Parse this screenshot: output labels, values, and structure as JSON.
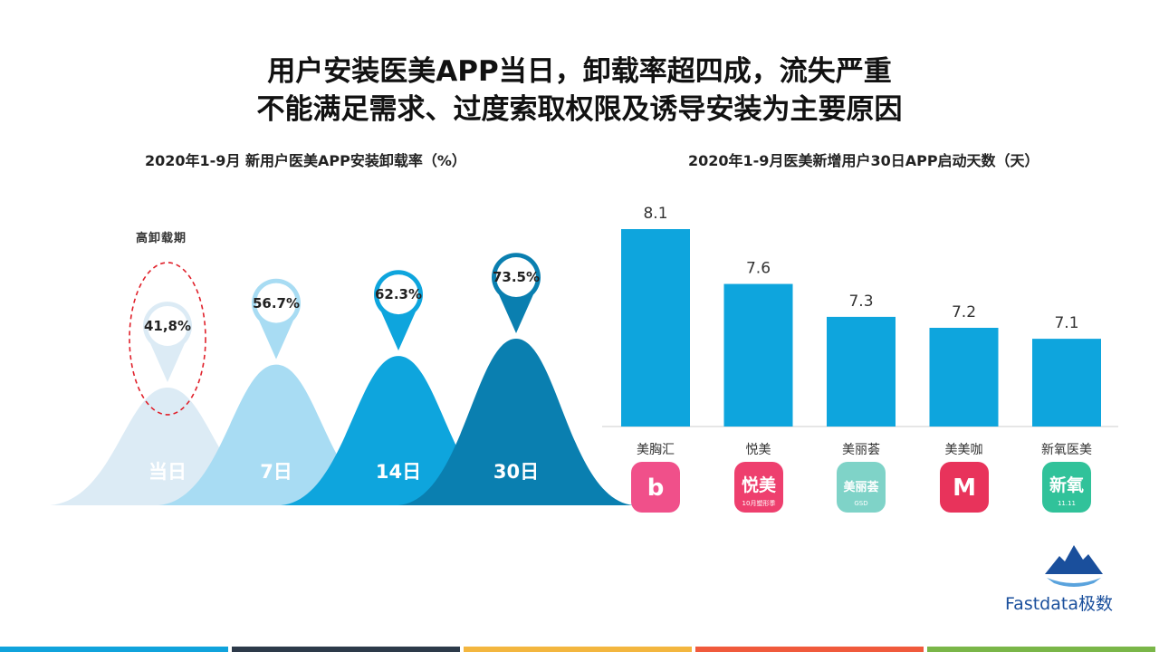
{
  "title": {
    "line1": "用户安装医美APP当日，卸载率超四成，流失严重",
    "line2": "不能满足需求、过度索取权限及诱导安装为主要原因"
  },
  "chart_data": [
    {
      "type": "area",
      "title": "2020年1-9月 新用户医美APP安装卸载率（%）",
      "annotation": "高卸载期",
      "categories": [
        "当日",
        "7日",
        "14日",
        "30日"
      ],
      "value_labels": [
        "41,8%",
        "56.7%",
        "62.3%",
        "73.5%"
      ],
      "values": [
        41.8,
        56.7,
        62.3,
        73.5
      ],
      "colors": [
        "#dcebf5",
        "#a8dcf3",
        "#0ea5dd",
        "#0a7fb0"
      ]
    },
    {
      "type": "bar",
      "title": "2020年1-9月医美新增用户30日APP启动天数（天）",
      "categories": [
        "美胸汇",
        "悦美",
        "美丽荟",
        "美美咖",
        "新氧医美"
      ],
      "values": [
        8.1,
        7.6,
        7.3,
        7.2,
        7.1
      ],
      "value_labels": [
        "8.1",
        "7.6",
        "7.3",
        "7.2",
        "7.1"
      ],
      "bar_color": "#0ea5dd"
    }
  ],
  "apps": [
    {
      "name": "美胸汇",
      "icon": "meixionghui-app-icon",
      "color": "#f0508a",
      "icon_text": "b"
    },
    {
      "name": "悦美",
      "icon": "yuemei-app-icon",
      "color": "#ee3f6e",
      "icon_text": "悦美",
      "icon_sub": "10月塑形季"
    },
    {
      "name": "美丽荟",
      "icon": "meilihui-app-icon",
      "color": "#7fd3c8",
      "icon_text": "美丽荟",
      "icon_sub": "GSD"
    },
    {
      "name": "美美咖",
      "icon": "meimeika-app-icon",
      "color": "#e8335b",
      "icon_text": "M"
    },
    {
      "name": "新氧医美",
      "icon": "xinyang-app-icon",
      "color": "#31c29a",
      "icon_text": "新氧",
      "icon_sub": "11.11"
    }
  ],
  "brand": {
    "name": "Fastdata极数",
    "color": "#1a4f9c"
  },
  "footer_colors": [
    "#10a3dc",
    "#2d3a4a",
    "#f3b63f",
    "#f05a3c",
    "#7ab648"
  ]
}
